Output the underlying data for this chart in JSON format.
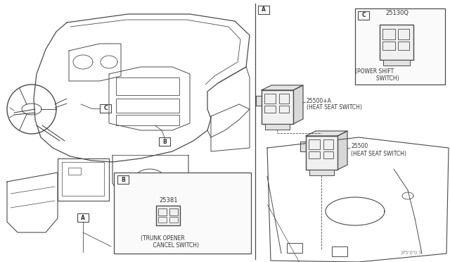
{
  "background_color": "#ffffff",
  "line_color": "#4a4a4a",
  "fig_width": 6.4,
  "fig_height": 3.72,
  "dpi": 100,
  "watermark": "JP5'0'0.S",
  "label_A": "A",
  "label_B": "B",
  "label_C": "C",
  "part_25381": "25381",
  "part_25500A": "25500+A",
  "part_25500": "25500",
  "part_25130Q": "25130Q",
  "desc_trunk_1": "(TRUNK OPENER",
  "desc_trunk_2": "    CANCEL SWITCH)",
  "desc_heat_seat_A": "(HEAT SEAT SWITCH)",
  "desc_heat_seat": "(HEAT SEAT SWITCH)",
  "desc_power_shift_1": "(POWER SHIFT",
  "desc_power_shift_2": "        SWITCH)"
}
